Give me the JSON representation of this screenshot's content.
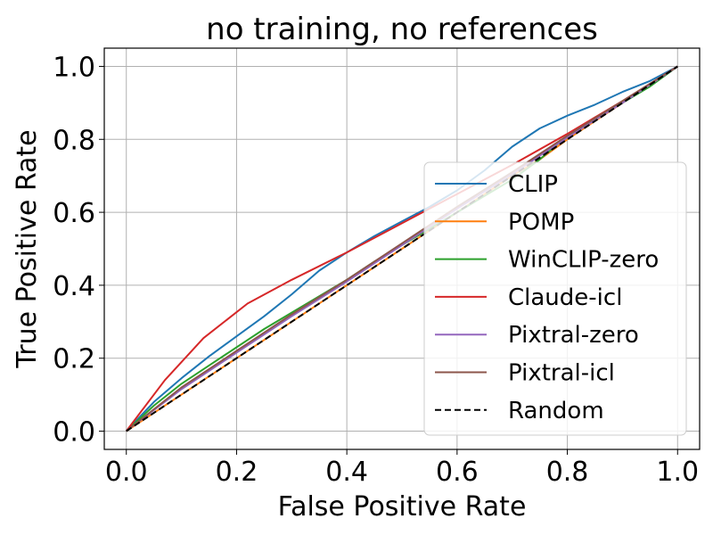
{
  "chart_data": {
    "type": "line",
    "title": "no training, no references",
    "xlabel": "False Positive Rate",
    "ylabel": "True Positive Rate",
    "xlim": [
      -0.04,
      1.04
    ],
    "ylim": [
      -0.05,
      1.05
    ],
    "grid": true,
    "legend_position": "center-right",
    "x_ticks": [
      0.0,
      0.2,
      0.4,
      0.6,
      0.8,
      1.0
    ],
    "y_ticks": [
      0.0,
      0.2,
      0.4,
      0.6,
      0.8,
      1.0
    ],
    "x_tick_labels": [
      "0.0",
      "0.2",
      "0.4",
      "0.6",
      "0.8",
      "1.0"
    ],
    "y_tick_labels": [
      "0.0",
      "0.2",
      "0.4",
      "0.6",
      "0.8",
      "1.0"
    ],
    "series": [
      {
        "name": "CLIP",
        "color": "#1f77b4",
        "dash": "solid",
        "x": [
          0,
          0.05,
          0.1,
          0.15,
          0.2,
          0.25,
          0.3,
          0.35,
          0.4,
          0.45,
          0.5,
          0.55,
          0.6,
          0.65,
          0.7,
          0.75,
          0.8,
          0.85,
          0.9,
          0.95,
          1.0
        ],
        "y": [
          0,
          0.08,
          0.145,
          0.205,
          0.26,
          0.315,
          0.375,
          0.44,
          0.49,
          0.535,
          0.575,
          0.615,
          0.66,
          0.715,
          0.78,
          0.83,
          0.865,
          0.895,
          0.93,
          0.96,
          1.0
        ]
      },
      {
        "name": "POMP",
        "color": "#ff7f0e",
        "dash": "solid",
        "x": [
          0,
          0.1,
          0.2,
          0.3,
          0.4,
          0.5,
          0.6,
          0.7,
          0.75,
          0.8,
          0.85,
          0.9,
          0.95,
          1.0
        ],
        "y": [
          0,
          0.1,
          0.2,
          0.3,
          0.4,
          0.5,
          0.6,
          0.7,
          0.745,
          0.8,
          0.85,
          0.9,
          0.95,
          1.0
        ]
      },
      {
        "name": "WinCLIP-zero",
        "color": "#2ca02c",
        "dash": "solid",
        "x": [
          0,
          0.05,
          0.1,
          0.15,
          0.2,
          0.25,
          0.3,
          0.35,
          0.4,
          0.45,
          0.5,
          0.55,
          0.6,
          0.65,
          0.7,
          0.75,
          0.8,
          0.85,
          0.9,
          0.95,
          1.0
        ],
        "y": [
          0,
          0.07,
          0.13,
          0.18,
          0.23,
          0.28,
          0.325,
          0.37,
          0.415,
          0.465,
          0.51,
          0.555,
          0.6,
          0.645,
          0.69,
          0.745,
          0.81,
          0.86,
          0.9,
          0.945,
          1.0
        ]
      },
      {
        "name": "Claude-icl",
        "color": "#d62728",
        "dash": "solid",
        "x": [
          0,
          0.07,
          0.14,
          0.22,
          0.3,
          0.4,
          0.5,
          0.6,
          0.7,
          0.8,
          0.9,
          1.0
        ],
        "y": [
          0,
          0.14,
          0.255,
          0.35,
          0.415,
          0.49,
          0.57,
          0.65,
          0.73,
          0.815,
          0.905,
          1.0
        ]
      },
      {
        "name": "Pixtral-zero",
        "color": "#9467bd",
        "dash": "solid",
        "x": [
          0,
          0.1,
          0.2,
          0.3,
          0.4,
          0.5,
          0.6,
          0.7,
          0.8,
          0.9,
          1.0
        ],
        "y": [
          0,
          0.115,
          0.215,
          0.315,
          0.41,
          0.51,
          0.61,
          0.705,
          0.805,
          0.9,
          1.0
        ]
      },
      {
        "name": "Pixtral-icl",
        "color": "#8c564b",
        "dash": "solid",
        "x": [
          0,
          0.1,
          0.2,
          0.3,
          0.4,
          0.5,
          0.6,
          0.7,
          0.8,
          0.9,
          1.0
        ],
        "y": [
          0,
          0.12,
          0.22,
          0.32,
          0.415,
          0.515,
          0.615,
          0.71,
          0.81,
          0.905,
          1.0
        ]
      },
      {
        "name": "Random",
        "color": "#000000",
        "dash": "dashed",
        "x": [
          0,
          1.0
        ],
        "y": [
          0,
          1.0
        ]
      }
    ]
  }
}
